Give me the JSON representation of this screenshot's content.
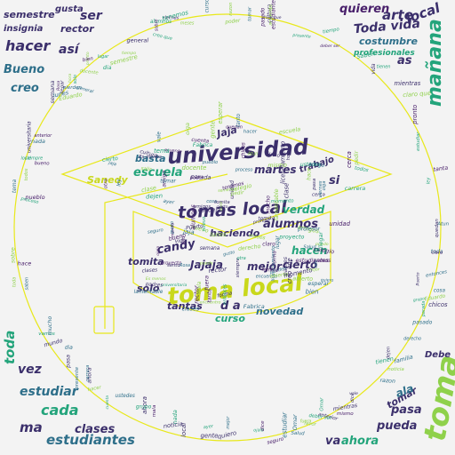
{
  "palette": {
    "background": "#f3f3f3",
    "outline": "#e8e81a",
    "navy": "#3b2f6b",
    "teal": "#2e6f8a",
    "green": "#23a47b",
    "lime": "#8fd14b",
    "yellow": "#c9d81c",
    "purple": "#49206b"
  },
  "shape": {
    "outer": "circle",
    "inner": "graduation-cap-icon"
  },
  "big_words": {
    "universidad": "universidad",
    "toma_local": "toma local",
    "tomas_local": "tomas local",
    "manana": "mañana",
    "toma_right": "toma",
    "arte": "arte",
    "local_top": "local",
    "toda_vida": "Toda vida",
    "hacer": "hacer",
    "asi": "así",
    "creo": "creo",
    "bueno": "Bueno",
    "ser": "ser",
    "vez": "vez",
    "cada": "cada",
    "estudiantes": "estudiantes",
    "clases": "clases",
    "estudiar": "estudiar",
    "ma": "ma",
    "toda_left": "toda",
    "ahora": "ahora",
    "va": "va",
    "pueda": "pueda",
    "pasa": "pasa",
    "tomar": "tomar",
    "ala": "ala",
    "debe": "Debe",
    "quieren": "quieren",
    "semestre": "semestre",
    "insignia": "insignia",
    "rector": "rector",
    "gusta": "gusta",
    "costumbre": "costumbre",
    "profesionales": "profesionales",
    "jaja_top": "Jaja",
    "basta": "basta",
    "escuela": "escuela",
    "martes": "martes",
    "sanedy": "Sanedy",
    "si": "si",
    "trabajo": "trabajo",
    "candy": "candy",
    "alumnos": "alumnos",
    "verdad": "verdad",
    "haciendo": "haciendo",
    "hacen": "hacen",
    "cierto": "cierto",
    "mejor": "mejor",
    "jajaja": "Jajaja",
    "tomita": "tomita",
    "solo": "solo",
    "da": "d a",
    "tantas": "tantas",
    "curso": "curso",
    "novedad": "novedad",
    "as": "as"
  },
  "small_words": [
    "gusto",
    "oiga",
    "profesor",
    "ayer",
    "Atun",
    "ustedes",
    "bien",
    "cosa",
    "tomar",
    "clases",
    "tanto",
    "dice",
    "vida",
    "hora",
    "semestre",
    "pasado",
    "momento",
    "amigos",
    "nuevo",
    "toda",
    "tiempo",
    "todos",
    "ley",
    "vamos",
    "meses",
    "hacer",
    "nada",
    "dia",
    "acuerdo",
    "entonces",
    "siempre",
    "mismo",
    "bueno",
    "otra",
    "favor",
    "rector",
    "Es menos",
    "creo que",
    "lunes",
    "escuela",
    "alumnos",
    "parada",
    "universitaria",
    "licenciamiento",
    "encuentro",
    "poder",
    "ahora",
    "cierto",
    "mejor",
    "tomita",
    "solo",
    "curso",
    "Puerto",
    "estudiantes",
    "estudiar",
    "semana",
    "tienen",
    "pasa",
    "dejen",
    "pierden",
    "amigo",
    "clase",
    "colegio",
    "chicos",
    "proyecto",
    "docente",
    "puedo",
    "tenemos",
    "pronto",
    "gente",
    "lugar",
    "Salud",
    "quiero",
    "Omar",
    "jaja",
    "tema",
    "forma",
    "cultura",
    "unidad",
    "noticia",
    "viernes",
    "familia",
    "sobre",
    "razon",
    "tanta",
    "seguro",
    "mucho",
    "claro",
    "hace",
    "ojala",
    "derecho",
    "claro que",
    "salir",
    "local",
    "llegar",
    "Rosa",
    "Eduardo",
    "grupo",
    "anterior",
    "lamentable",
    "carrera",
    "fuera",
    "pedir",
    "saben",
    "abierto",
    "presente",
    "proceso",
    "padres",
    "deber ser",
    "general",
    "mientras",
    "mundo",
    "cuenta",
    "quedan",
    "vale",
    "esperar",
    "cerca",
    "pueblo",
    "mala",
    "Fabrica"
  ]
}
